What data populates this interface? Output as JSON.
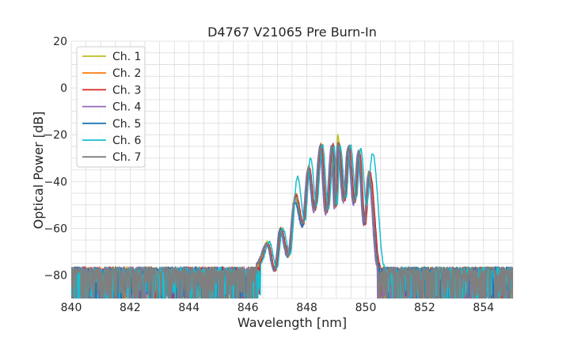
{
  "chart_data": {
    "type": "line",
    "title": "D4767 V21065 Pre Burn-In",
    "xlabel": "Wavelength [nm]",
    "ylabel": "Optical Power [dB]",
    "xlim": [
      840,
      855
    ],
    "ylim": [
      -90,
      20
    ],
    "xticks": [
      840,
      842,
      844,
      846,
      848,
      850,
      852,
      854
    ],
    "yticks": [
      20,
      0,
      -20,
      -40,
      -60,
      -80
    ],
    "ytick_labels": [
      "20",
      "0",
      "−20",
      "−40",
      "−60",
      "−80"
    ],
    "grid": true,
    "legend_position": "top-left",
    "noise_floor_db": -78,
    "series": [
      {
        "name": "Ch. 1",
        "color": "#bcbd22",
        "shift": 0.0,
        "lobe_shift": -1,
        "peaks": [
          [
            846.65,
            -66
          ],
          [
            847.1,
            -60
          ],
          [
            847.6,
            -47
          ],
          [
            848.05,
            -36
          ],
          [
            848.45,
            -26
          ],
          [
            848.85,
            -25
          ],
          [
            849.05,
            -20
          ],
          [
            849.4,
            -26
          ],
          [
            849.75,
            -27
          ],
          [
            850.1,
            -36
          ]
        ],
        "dips": [
          [
            846.9,
            -77
          ],
          [
            847.35,
            -72
          ],
          [
            847.85,
            -59
          ],
          [
            848.25,
            -52
          ],
          [
            848.65,
            -53
          ],
          [
            848.95,
            -51
          ],
          [
            849.25,
            -48
          ],
          [
            849.6,
            -49
          ],
          [
            849.95,
            -58
          ]
        ],
        "edges": [
          846.35,
          850.45
        ]
      },
      {
        "name": "Ch. 2",
        "color": "#ff7f0e",
        "shift": 0.02,
        "lobe_shift": 0,
        "peaks": [
          [
            846.65,
            -67
          ],
          [
            847.1,
            -60
          ],
          [
            847.6,
            -45
          ],
          [
            848.05,
            -33
          ],
          [
            848.45,
            -24
          ],
          [
            848.85,
            -25
          ],
          [
            849.05,
            -23
          ],
          [
            849.4,
            -25
          ],
          [
            849.75,
            -27
          ],
          [
            850.1,
            -37
          ]
        ],
        "dips": [
          [
            846.9,
            -78
          ],
          [
            847.35,
            -72
          ],
          [
            847.85,
            -58
          ],
          [
            848.25,
            -52
          ],
          [
            848.65,
            -53
          ],
          [
            848.95,
            -51
          ],
          [
            849.25,
            -48
          ],
          [
            849.6,
            -49
          ],
          [
            849.95,
            -58
          ]
        ],
        "edges": [
          846.3,
          850.4
        ]
      },
      {
        "name": "Ch. 3",
        "color": "#d62728",
        "shift": 0.04,
        "lobe_shift": 1,
        "peaks": [
          [
            846.65,
            -67
          ],
          [
            847.1,
            -61
          ],
          [
            847.6,
            -46
          ],
          [
            848.05,
            -34
          ],
          [
            848.45,
            -24
          ],
          [
            848.85,
            -24
          ],
          [
            849.05,
            -24
          ],
          [
            849.4,
            -25
          ],
          [
            849.75,
            -27
          ],
          [
            850.1,
            -36
          ]
        ],
        "dips": [
          [
            846.9,
            -78
          ],
          [
            847.35,
            -71
          ],
          [
            847.85,
            -58
          ],
          [
            848.25,
            -52
          ],
          [
            848.65,
            -53
          ],
          [
            848.95,
            -51
          ],
          [
            849.25,
            -48
          ],
          [
            849.6,
            -49
          ],
          [
            849.95,
            -58
          ]
        ],
        "edges": [
          846.35,
          850.45
        ]
      },
      {
        "name": "Ch. 4",
        "color": "#9467bd",
        "shift": -0.02,
        "lobe_shift": -1,
        "peaks": [
          [
            846.65,
            -67
          ],
          [
            847.1,
            -61
          ],
          [
            847.6,
            -48
          ],
          [
            848.05,
            -35
          ],
          [
            848.45,
            -26
          ],
          [
            848.85,
            -25
          ],
          [
            849.05,
            -25
          ],
          [
            849.4,
            -26
          ],
          [
            849.75,
            -28
          ],
          [
            850.1,
            -37
          ]
        ],
        "dips": [
          [
            846.9,
            -78
          ],
          [
            847.35,
            -72
          ],
          [
            847.85,
            -59
          ],
          [
            848.25,
            -53
          ],
          [
            848.65,
            -54
          ],
          [
            848.95,
            -52
          ],
          [
            849.25,
            -49
          ],
          [
            849.6,
            -50
          ],
          [
            849.95,
            -59
          ]
        ],
        "edges": [
          846.3,
          850.4
        ]
      },
      {
        "name": "Ch. 5",
        "color": "#1f77b4",
        "shift": 0.0,
        "lobe_shift": 0,
        "peaks": [
          [
            846.65,
            -67
          ],
          [
            847.1,
            -60
          ],
          [
            847.6,
            -49
          ],
          [
            848.05,
            -35
          ],
          [
            848.45,
            -25
          ],
          [
            848.85,
            -25
          ],
          [
            849.05,
            -24
          ],
          [
            849.4,
            -25
          ],
          [
            849.75,
            -27
          ],
          [
            850.1,
            -37
          ]
        ],
        "dips": [
          [
            846.9,
            -78
          ],
          [
            847.35,
            -72
          ],
          [
            847.85,
            -59
          ],
          [
            848.25,
            -52
          ],
          [
            848.65,
            -53
          ],
          [
            848.95,
            -51
          ],
          [
            849.25,
            -48
          ],
          [
            849.6,
            -49
          ],
          [
            849.95,
            -58
          ]
        ],
        "edges": [
          846.3,
          850.45
        ]
      },
      {
        "name": "Ch. 6",
        "color": "#17becf",
        "shift": 0.08,
        "lobe_shift": 1,
        "peaks": [
          [
            846.65,
            -66
          ],
          [
            847.1,
            -60
          ],
          [
            847.6,
            -38
          ],
          [
            848.05,
            -30
          ],
          [
            848.45,
            -24
          ],
          [
            848.85,
            -25
          ],
          [
            849.05,
            -25
          ],
          [
            849.4,
            -24
          ],
          [
            849.75,
            -26
          ],
          [
            850.15,
            -28
          ]
        ],
        "dips": [
          [
            846.9,
            -77
          ],
          [
            847.35,
            -71
          ],
          [
            847.85,
            -57
          ],
          [
            848.25,
            -50
          ],
          [
            848.65,
            -52
          ],
          [
            848.95,
            -50
          ],
          [
            849.25,
            -47
          ],
          [
            849.6,
            -47
          ],
          [
            849.95,
            -50
          ]
        ],
        "edges": [
          846.35,
          850.55
        ]
      },
      {
        "name": "Ch. 7",
        "color": "#7f7f7f",
        "shift": 0.01,
        "lobe_shift": 0,
        "peaks": [
          [
            846.65,
            -67
          ],
          [
            847.1,
            -61
          ],
          [
            847.6,
            -46
          ],
          [
            848.05,
            -34
          ],
          [
            848.45,
            -25
          ],
          [
            848.85,
            -24
          ],
          [
            849.05,
            -24
          ],
          [
            849.4,
            -25
          ],
          [
            849.75,
            -27
          ],
          [
            850.1,
            -36
          ]
        ],
        "dips": [
          [
            846.9,
            -78
          ],
          [
            847.35,
            -72
          ],
          [
            847.85,
            -58
          ],
          [
            848.25,
            -52
          ],
          [
            848.65,
            -53
          ],
          [
            848.95,
            -51
          ],
          [
            849.25,
            -48
          ],
          [
            849.6,
            -49
          ],
          [
            849.95,
            -58
          ]
        ],
        "edges": [
          846.3,
          850.4
        ]
      }
    ]
  }
}
